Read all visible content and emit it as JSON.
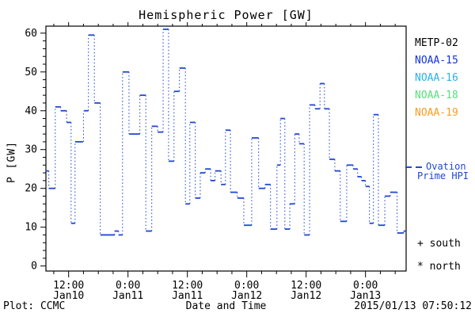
{
  "title": "Hemispheric Power [GW]",
  "axes": {
    "y": {
      "label": "P [GW]",
      "ticks": [
        0,
        10,
        20,
        30,
        40,
        50,
        60
      ],
      "minor_step": 2,
      "range": [
        -1.3,
        61.8
      ]
    },
    "x": {
      "label": "Date and Time",
      "epoch": "hours since 2015-01-10 00:00 UT",
      "range_hours": [
        7.41,
        80.21
      ],
      "minor_step_hours": 3,
      "ticks": [
        {
          "time": "12:00",
          "date": "Jan10",
          "t": 12
        },
        {
          "time": "0:00",
          "date": "Jan11",
          "t": 24
        },
        {
          "time": "12:00",
          "date": "Jan11",
          "t": 36
        },
        {
          "time": "0:00",
          "date": "Jan12",
          "t": 48
        },
        {
          "time": "12:00",
          "date": "Jan12",
          "t": 60
        },
        {
          "time": "0:00",
          "date": "Jan13",
          "t": 72
        }
      ]
    }
  },
  "legend": {
    "satellites": [
      {
        "label": "METP-02",
        "color": "#000000"
      },
      {
        "label": "NOAA-15",
        "color": "#1433d6"
      },
      {
        "label": "NOAA-16",
        "color": "#2ab0e8"
      },
      {
        "label": "NOAA-18",
        "color": "#57e07c"
      },
      {
        "label": "NOAA-19",
        "color": "#f79c1e"
      }
    ]
  },
  "ovation_legend": {
    "line1": "Ovation",
    "line2": "Prime HPI",
    "marker": "dashed-line",
    "color": "#2148d1"
  },
  "hemisphere_markers": {
    "south": {
      "symbol": "+",
      "label": "south"
    },
    "north": {
      "symbol": "*",
      "label": "north"
    }
  },
  "footer": {
    "credit": "Plot: CCMC",
    "timestamp": "2015/01/13 07:50:12"
  },
  "chart_data": {
    "type": "line",
    "style": "step segments (solid horizontal) joined by dotted vertical connectors",
    "title": "Hemispheric Power [GW]",
    "xlabel": "Date and Time",
    "ylabel": "P [GW]",
    "ylim": [
      -1.3,
      61.8
    ],
    "xlim_hours": [
      7.41,
      80.21
    ],
    "grid": false,
    "legend_position": "right outside",
    "series": [
      {
        "name": "Ovation Prime HPI",
        "color": "#2148d1",
        "units": "GW",
        "segments_t1_t2_value": [
          [
            7.4,
            8.0,
            24.5
          ],
          [
            8.0,
            9.3,
            20
          ],
          [
            9.3,
            10.4,
            41
          ],
          [
            10.4,
            11.6,
            40
          ],
          [
            11.6,
            12.5,
            37
          ],
          [
            12.5,
            13.3,
            11
          ],
          [
            13.3,
            14.9,
            32
          ],
          [
            15.1,
            16.0,
            40
          ],
          [
            16.0,
            17.2,
            59.5
          ],
          [
            17.2,
            18.4,
            42
          ],
          [
            18.4,
            21.3,
            8
          ],
          [
            21.3,
            22.1,
            9
          ],
          [
            22.1,
            22.9,
            8
          ],
          [
            22.9,
            24.2,
            50
          ],
          [
            24.2,
            26.4,
            34
          ],
          [
            26.4,
            27.6,
            44
          ],
          [
            27.6,
            28.8,
            9
          ],
          [
            28.8,
            30.0,
            36
          ],
          [
            30.0,
            31.1,
            34.5
          ],
          [
            31.1,
            32.2,
            61
          ],
          [
            32.2,
            33.3,
            27
          ],
          [
            33.3,
            34.4,
            45
          ],
          [
            34.4,
            35.6,
            51
          ],
          [
            35.6,
            36.5,
            16
          ],
          [
            36.5,
            37.6,
            37
          ],
          [
            37.6,
            38.6,
            17.5
          ],
          [
            38.6,
            39.6,
            24
          ],
          [
            39.6,
            40.7,
            25
          ],
          [
            40.7,
            41.6,
            22
          ],
          [
            41.6,
            42.8,
            24.5
          ],
          [
            42.8,
            43.7,
            21
          ],
          [
            43.7,
            44.7,
            35
          ],
          [
            44.7,
            46.1,
            19
          ],
          [
            46.1,
            47.4,
            17.5
          ],
          [
            47.4,
            49.0,
            10.5
          ],
          [
            49.0,
            50.4,
            33
          ],
          [
            50.4,
            51.7,
            20
          ],
          [
            51.7,
            52.8,
            21
          ],
          [
            52.8,
            54.1,
            9.5
          ],
          [
            54.1,
            54.8,
            26
          ],
          [
            54.8,
            55.7,
            38
          ],
          [
            55.7,
            56.7,
            9.5
          ],
          [
            56.7,
            57.7,
            16
          ],
          [
            57.7,
            58.6,
            34
          ],
          [
            58.6,
            59.6,
            31.5
          ],
          [
            59.6,
            60.7,
            8
          ],
          [
            60.7,
            61.8,
            41.5
          ],
          [
            61.8,
            62.8,
            40.5
          ],
          [
            62.8,
            63.7,
            47
          ],
          [
            63.7,
            64.7,
            40.5
          ],
          [
            64.7,
            65.8,
            27.5
          ],
          [
            65.8,
            66.9,
            24.5
          ],
          [
            66.9,
            68.2,
            11.5
          ],
          [
            68.2,
            69.5,
            26
          ],
          [
            69.5,
            70.4,
            25
          ],
          [
            70.4,
            71.2,
            23
          ],
          [
            71.2,
            72.0,
            22
          ],
          [
            72.0,
            72.8,
            20.5
          ],
          [
            72.8,
            73.6,
            11
          ],
          [
            73.6,
            74.6,
            39
          ],
          [
            74.6,
            75.9,
            10.5
          ],
          [
            75.9,
            77.0,
            18
          ],
          [
            77.0,
            78.4,
            19
          ],
          [
            78.4,
            79.7,
            8.5
          ],
          [
            79.7,
            80.2,
            9
          ]
        ]
      }
    ]
  }
}
